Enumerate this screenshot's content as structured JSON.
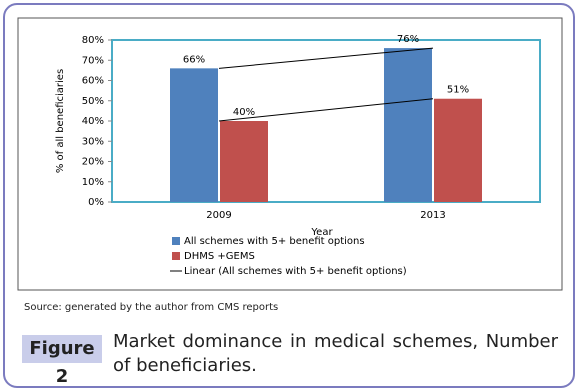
{
  "chart_data": {
    "type": "bar",
    "categories": [
      "2009",
      "2013"
    ],
    "series": [
      {
        "name": "All schemes with 5+ benefit options",
        "color": "#4f81bd",
        "values": [
          66,
          76
        ],
        "value_labels": [
          "66%",
          "76%"
        ]
      },
      {
        "name": "DHMS +GEMS",
        "color": "#c0504d",
        "values": [
          40,
          51
        ],
        "value_labels": [
          "40%",
          "51%"
        ]
      }
    ],
    "trendline": true,
    "trendline_label": "Linear (All schemes with 5+ benefit options)",
    "xlabel": "Year",
    "ylabel": "% of all beneficiaries",
    "ylim": [
      0,
      80
    ],
    "yticks": [
      {
        "value": 0,
        "label": "0%"
      },
      {
        "value": 10,
        "label": "10%"
      },
      {
        "value": 20,
        "label": "20%"
      },
      {
        "value": 30,
        "label": "30%"
      },
      {
        "value": 40,
        "label": "40%"
      },
      {
        "value": 50,
        "label": "50%"
      },
      {
        "value": 60,
        "label": "60%"
      },
      {
        "value": 70,
        "label": "70%"
      },
      {
        "value": 80,
        "label": "80%"
      }
    ]
  },
  "source": "Source: generated by the author from CMS reports",
  "caption": {
    "label": "Figure 2",
    "text": "Market dominance in medical schemes, Number of beneficiaries."
  }
}
